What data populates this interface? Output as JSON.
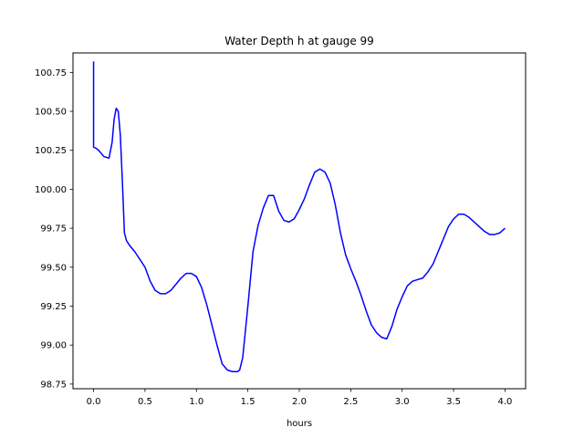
{
  "chart_data": {
    "type": "line",
    "title": "Water Depth h at gauge 99",
    "xlabel": "hours",
    "ylabel": "",
    "xlim": [
      -0.2,
      4.2
    ],
    "ylim": [
      98.72,
      100.875
    ],
    "xticks": [
      0.0,
      0.5,
      1.0,
      1.5,
      2.0,
      2.5,
      3.0,
      3.5,
      4.0
    ],
    "xtick_labels": [
      "0.0",
      "0.5",
      "1.0",
      "1.5",
      "2.0",
      "2.5",
      "3.0",
      "3.5",
      "4.0"
    ],
    "yticks": [
      98.75,
      99.0,
      99.25,
      99.5,
      99.75,
      100.0,
      100.25,
      100.5,
      100.75
    ],
    "ytick_labels": [
      "98.75",
      "99.00",
      "99.25",
      "99.50",
      "99.75",
      "100.00",
      "100.25",
      "100.50",
      "100.75"
    ],
    "grid": false,
    "series": [
      {
        "color": "#0000ff",
        "x": [
          0.0,
          0.0,
          0.02,
          0.05,
          0.1,
          0.15,
          0.18,
          0.2,
          0.22,
          0.24,
          0.26,
          0.28,
          0.3,
          0.32,
          0.35,
          0.4,
          0.45,
          0.5,
          0.55,
          0.6,
          0.65,
          0.7,
          0.75,
          0.8,
          0.85,
          0.9,
          0.95,
          1.0,
          1.05,
          1.1,
          1.15,
          1.2,
          1.25,
          1.3,
          1.35,
          1.4,
          1.42,
          1.45,
          1.5,
          1.55,
          1.6,
          1.65,
          1.7,
          1.75,
          1.8,
          1.85,
          1.9,
          1.95,
          2.0,
          2.05,
          2.1,
          2.15,
          2.2,
          2.25,
          2.3,
          2.35,
          2.4,
          2.45,
          2.5,
          2.55,
          2.6,
          2.65,
          2.7,
          2.75,
          2.8,
          2.85,
          2.9,
          2.95,
          3.0,
          3.05,
          3.1,
          3.15,
          3.2,
          3.25,
          3.3,
          3.35,
          3.4,
          3.45,
          3.5,
          3.55,
          3.6,
          3.65,
          3.7,
          3.75,
          3.8,
          3.85,
          3.9,
          3.95,
          4.0
        ],
        "y": [
          100.82,
          100.27,
          100.265,
          100.25,
          100.21,
          100.2,
          100.3,
          100.45,
          100.52,
          100.5,
          100.35,
          100.05,
          99.72,
          99.67,
          99.64,
          99.6,
          99.55,
          99.5,
          99.41,
          99.35,
          99.33,
          99.33,
          99.35,
          99.39,
          99.43,
          99.46,
          99.46,
          99.44,
          99.37,
          99.26,
          99.13,
          99.0,
          98.88,
          98.84,
          98.83,
          98.83,
          98.84,
          98.92,
          99.25,
          99.6,
          99.77,
          99.88,
          99.96,
          99.96,
          99.86,
          99.8,
          99.79,
          99.81,
          99.87,
          99.94,
          100.03,
          100.11,
          100.13,
          100.11,
          100.04,
          99.9,
          99.72,
          99.58,
          99.49,
          99.41,
          99.32,
          99.22,
          99.13,
          99.08,
          99.05,
          99.04,
          99.12,
          99.23,
          99.31,
          99.38,
          99.41,
          99.42,
          99.43,
          99.47,
          99.52,
          99.6,
          99.68,
          99.76,
          99.81,
          99.84,
          99.84,
          99.82,
          99.79,
          99.76,
          99.73,
          99.71,
          99.71,
          99.72,
          99.75
        ]
      }
    ]
  }
}
